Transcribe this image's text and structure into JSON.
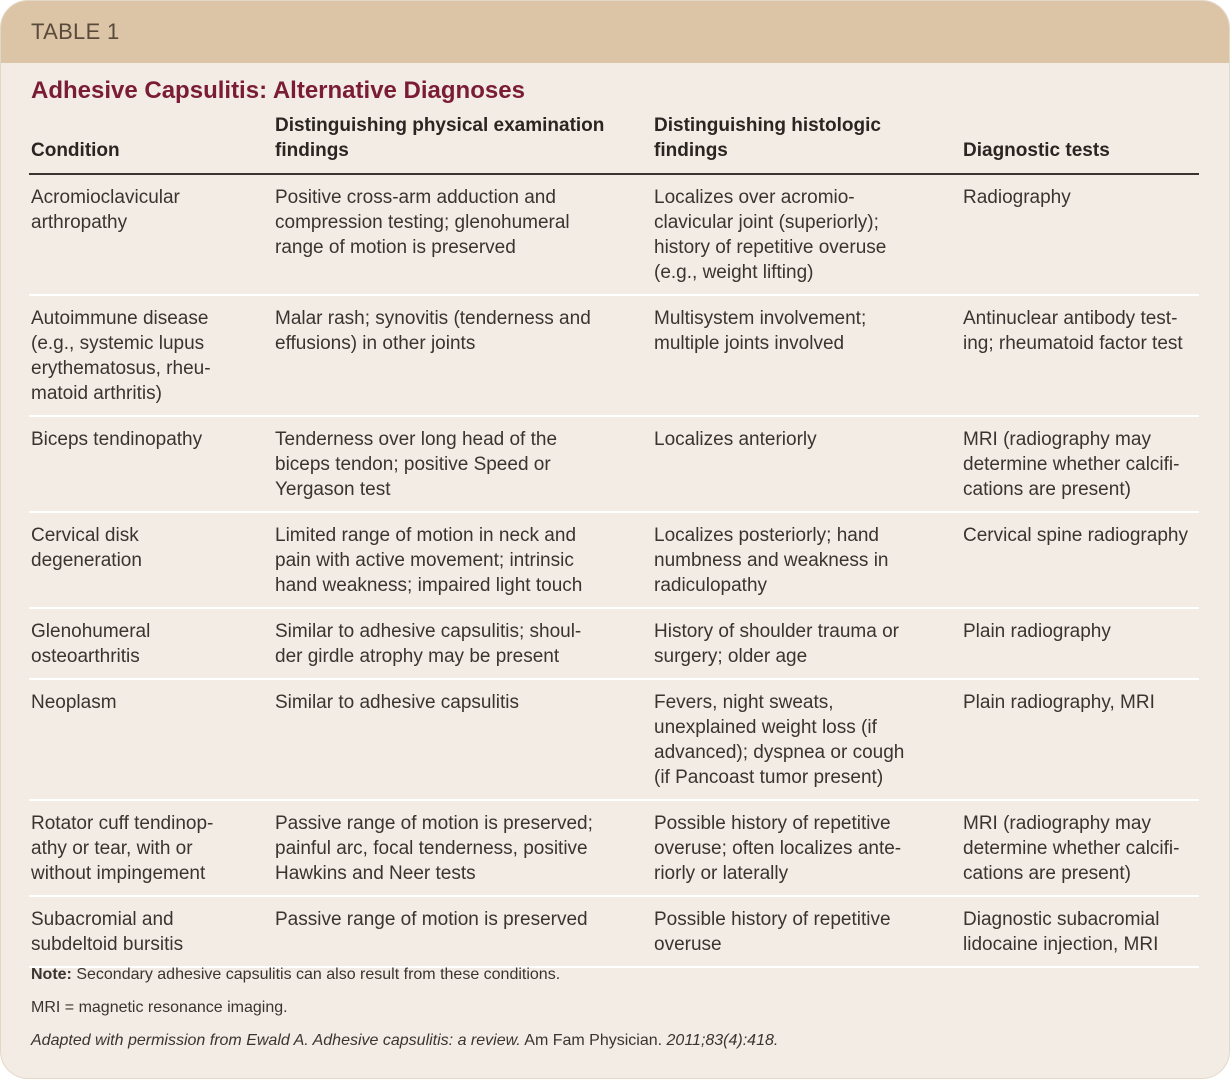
{
  "table_label": "TABLE 1",
  "title": "Adhesive Capsulitis: Alternative Diagnoses",
  "columns": [
    "Condition",
    "Distinguishing physical examination\nfindings",
    "Distinguishing histologic\nfindings",
    "Diagnostic tests"
  ],
  "rows": [
    [
      "Acromioclavicular\narthropathy",
      "Positive cross-arm adduction and\ncompression testing; glenohumeral\nrange of motion is preserved",
      "Localizes over acromio-\nclavicular joint (superiorly);\nhistory of repetitive overuse\n(e.g., weight lifting)",
      "Radiography"
    ],
    [
      "Autoimmune disease\n(e.g., systemic lupus\nerythematosus, rheu-\nmatoid arthritis)",
      "Malar rash; synovitis (tenderness and\neffusions) in other joints",
      "Multisystem involvement;\nmultiple joints involved",
      "Antinuclear antibody test-\ning; rheumatoid factor test"
    ],
    [
      "Biceps tendinopathy",
      "Tenderness over long head of the\nbiceps tendon; positive Speed or\nYergason test",
      "Localizes anteriorly",
      "MRI (radiography may\ndetermine whether calcifi-\ncations are present)"
    ],
    [
      "Cervical disk\ndegeneration",
      "Limited range of motion in neck and\npain with active movement; intrinsic\nhand weakness; impaired light touch",
      "Localizes posteriorly; hand\nnumbness and weakness in\nradiculopathy",
      "Cervical spine radiography"
    ],
    [
      "Glenohumeral\nosteoarthritis",
      "Similar to adhesive capsulitis; shoul-\nder girdle atrophy may be present",
      "History of shoulder trauma or\nsurgery; older age",
      "Plain radiography"
    ],
    [
      "Neoplasm",
      "Similar to adhesive capsulitis",
      "Fevers, night sweats,\nunexplained weight loss (if\nadvanced); dyspnea or cough\n(if Pancoast tumor present)",
      "Plain radiography, MRI"
    ],
    [
      "Rotator cuff tendinop-\nathy or tear, with or\nwithout impingement",
      "Passive range of motion is preserved;\npainful arc, focal tenderness, positive\nHawkins and Neer tests",
      "Possible history of repetitive\noveruse; often localizes ante-\nriorly or laterally",
      "MRI (radiography may\ndetermine whether calcifi-\ncations are present)"
    ],
    [
      "Subacromial and\nsubdeltoid bursitis",
      "Passive range of motion is preserved",
      "Possible history of repetitive\noveruse",
      "Diagnostic subacromial\nlidocaine injection, MRI"
    ]
  ],
  "footer": {
    "note_label": "Note:",
    "note_text": " Secondary adhesive capsulitis can also result from these conditions.",
    "abbrev": "MRI = magnetic resonance imaging.",
    "source_a": "Adapted with permission from Ewald A. Adhesive capsulitis: a review.",
    "source_b": " Am Fam Physician. ",
    "source_c": "2011;83(4):418."
  },
  "colors": {
    "band": "#dcc5a6",
    "background": "#f3ece4",
    "title": "#7a1c35"
  }
}
